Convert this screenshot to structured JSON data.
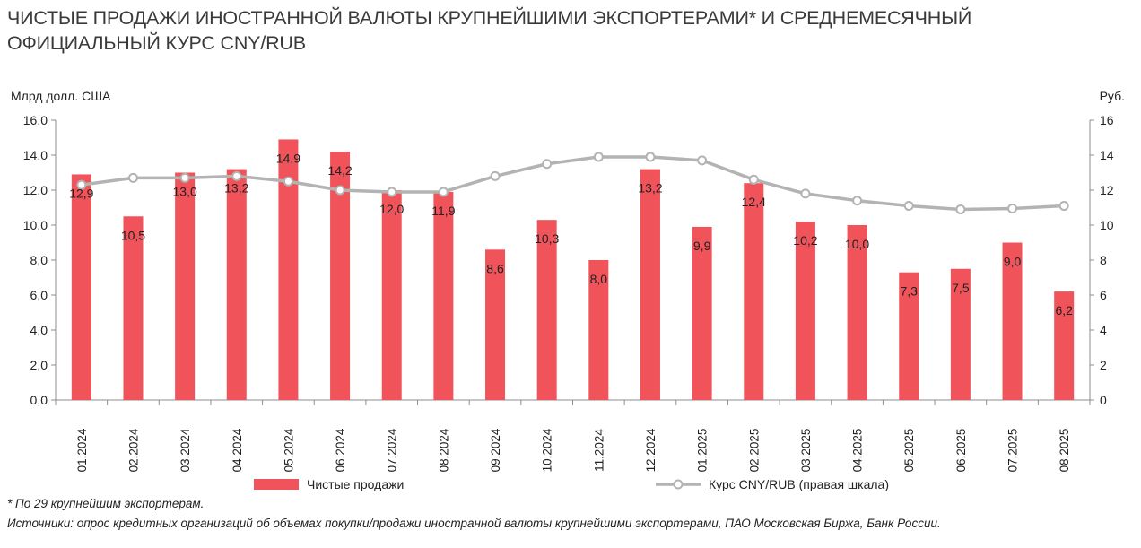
{
  "title_line1": "ЧИСТЫЕ ПРОДАЖИ ИНОСТРАННОЙ ВАЛЮТЫ КРУПНЕЙШИМИ ЭКСПОРТЕРАМИ* И СРЕДНЕМЕСЯЧНЫЙ",
  "title_line2": "ОФИЦИАЛЬНЫЙ КУРС CNY/RUB",
  "left_unit": "Млрд долл. США",
  "right_unit": "Руб.",
  "footnote": "* По 29 крупнейшим экспортерам.",
  "source": "Источники: опрос кредитных организаций об объемах покупки/продажи иностранной валюты крупнейшими экспортерами, ПАО Московская Биржа, Банк России.",
  "colors": {
    "bar": "#f0545a",
    "line": "#b3b3b3",
    "marker_fill": "#ffffff",
    "axis": "#8c8c8c"
  },
  "chart_data": {
    "type": "bar",
    "categories": [
      "01.2024",
      "02.2024",
      "03.2024",
      "04.2024",
      "05.2024",
      "06.2024",
      "07.2024",
      "08.2024",
      "09.2024",
      "10.2024",
      "11.2024",
      "12.2024",
      "01.2025",
      "02.2025",
      "03.2025",
      "04.2025",
      "05.2025",
      "06.2025",
      "07.2025",
      "08.2025"
    ],
    "series": [
      {
        "name": "Чистые продажи",
        "type": "bar",
        "axis": "left",
        "values": [
          12.9,
          10.5,
          13.0,
          13.2,
          14.9,
          14.2,
          12.0,
          11.9,
          8.6,
          10.3,
          8.0,
          13.2,
          9.9,
          12.4,
          10.2,
          10.0,
          7.3,
          7.5,
          9.0,
          6.2
        ],
        "labels": [
          "12,9",
          "10,5",
          "13,0",
          "13,2",
          "14,9",
          "14,2",
          "12,0",
          "11,9",
          "8,6",
          "10,3",
          "8,0",
          "13,2",
          "9,9",
          "12,4",
          "10,2",
          "10,0",
          "7,3",
          "7,5",
          "9,0",
          "6,2"
        ]
      },
      {
        "name": "Курс CNY/RUB (правая шкала)",
        "type": "line",
        "axis": "right",
        "values": [
          12.3,
          12.7,
          12.7,
          12.8,
          12.5,
          12.0,
          11.9,
          11.9,
          12.8,
          13.5,
          13.9,
          13.9,
          13.7,
          12.6,
          11.8,
          11.4,
          11.1,
          10.9,
          10.95,
          11.1
        ]
      }
    ],
    "left_axis": {
      "range": [
        0,
        16
      ],
      "ticks": [
        "0,0",
        "2,0",
        "4,0",
        "6,0",
        "8,0",
        "10,0",
        "12,0",
        "14,0",
        "16,0"
      ]
    },
    "right_axis": {
      "range": [
        0,
        16
      ],
      "ticks": [
        "0",
        "2",
        "4",
        "6",
        "8",
        "10",
        "12",
        "14",
        "16"
      ]
    },
    "grid": false,
    "legend_position": "bottom"
  }
}
